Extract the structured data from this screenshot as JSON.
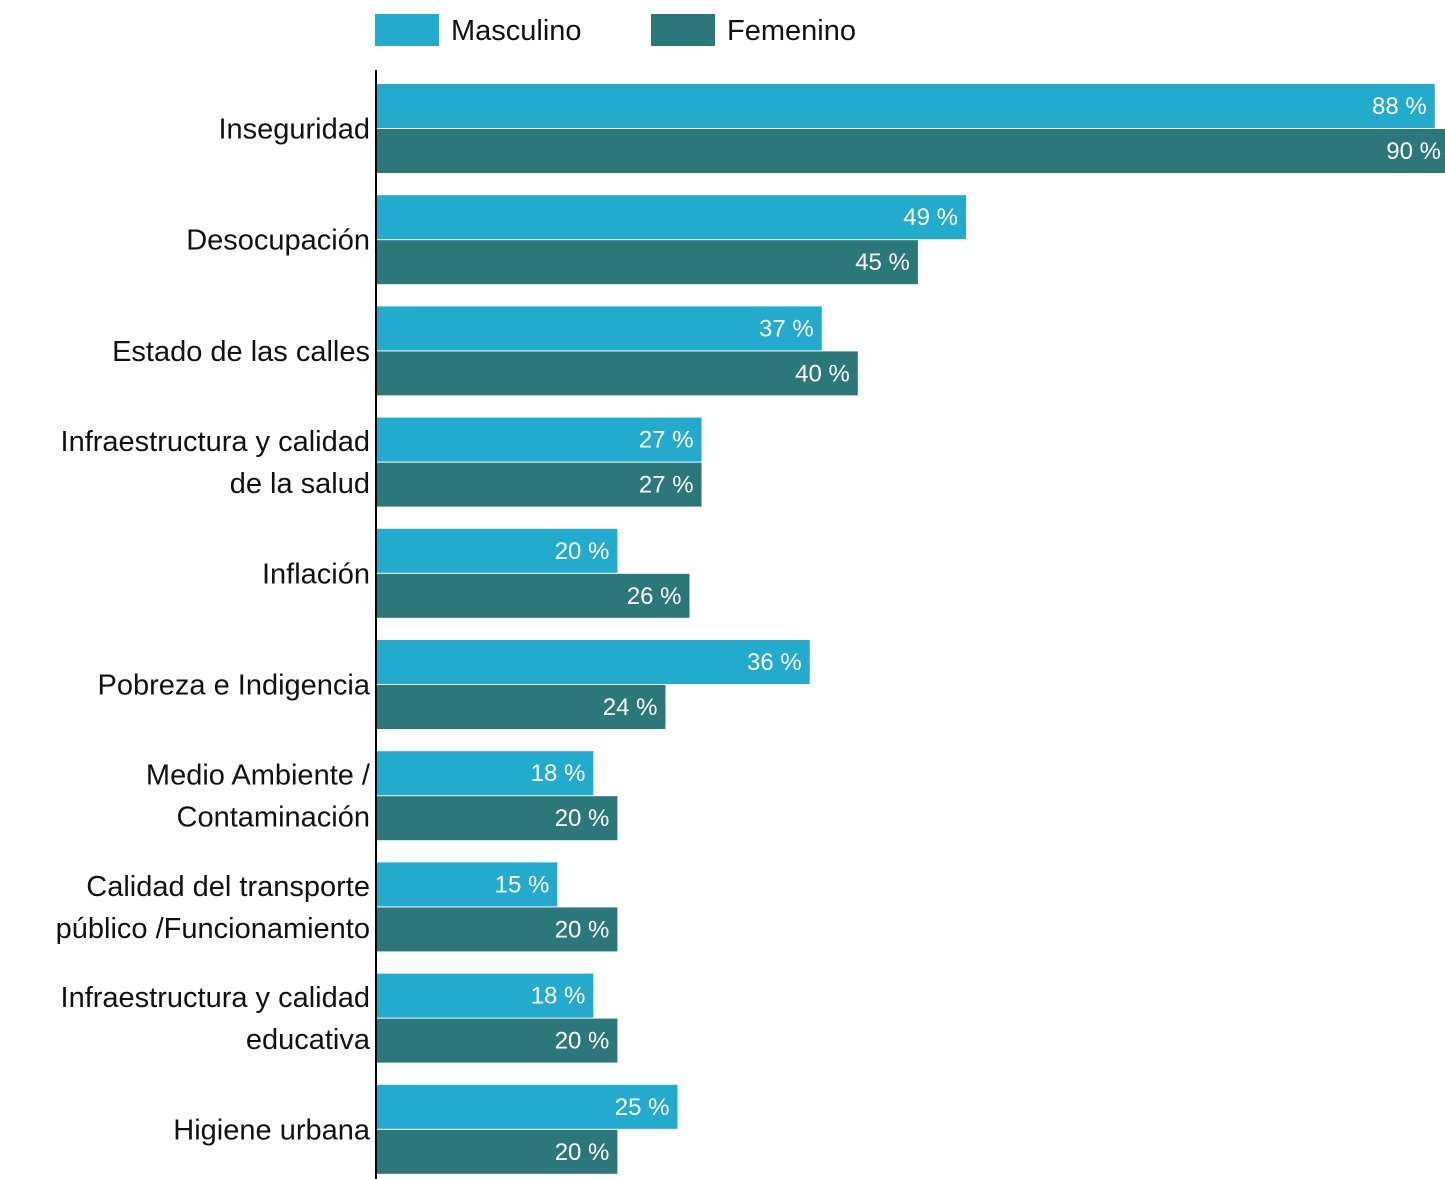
{
  "colors": {
    "masculino": "#22abcc",
    "femenino": "#2b7779",
    "axis": "#000000"
  },
  "legend": [
    {
      "name": "Masculino",
      "color": "#22abcc"
    },
    {
      "name": "Femenino",
      "color": "#2b7779"
    }
  ],
  "chart_data": {
    "type": "bar",
    "orientation": "horizontal",
    "legend_position": "top",
    "grid": false,
    "value_suffix": " %",
    "xlim": [
      0,
      90
    ],
    "categories": [
      [
        "Inseguridad"
      ],
      [
        "Desocupación"
      ],
      [
        "Estado de las calles"
      ],
      [
        "Infraestructura y calidad",
        "de la salud"
      ],
      [
        "Inflación"
      ],
      [
        "Pobreza e Indigencia"
      ],
      [
        "Medio Ambiente /",
        "Contaminación"
      ],
      [
        "Calidad del transporte",
        "público /Funcionamiento"
      ],
      [
        "Infraestructura y calidad",
        "educativa"
      ],
      [
        "Higiene urbana"
      ]
    ],
    "series": [
      {
        "name": "Masculino",
        "color": "#22abcc",
        "values": [
          88,
          49,
          37,
          27,
          20,
          36,
          18,
          15,
          18,
          25
        ]
      },
      {
        "name": "Femenino",
        "color": "#2b7779",
        "values": [
          90,
          45,
          40,
          27,
          26,
          24,
          20,
          20,
          20,
          20
        ]
      }
    ]
  }
}
